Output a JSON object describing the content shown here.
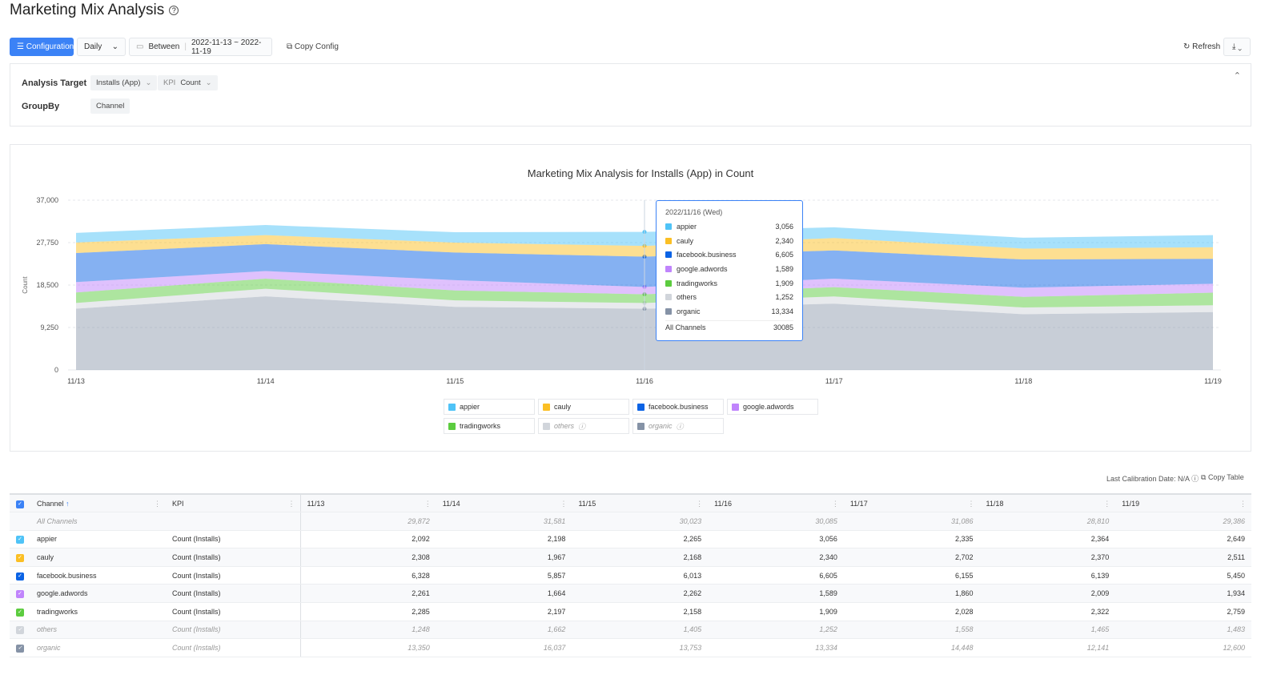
{
  "page": {
    "title": "Marketing Mix Analysis"
  },
  "toolbar": {
    "configuration": "Configuration",
    "period": "Daily",
    "between_label": "Between",
    "date_range": "2022-11-13 ~ 2022-11-19",
    "copy_config": "Copy Config",
    "refresh": "Refresh"
  },
  "config": {
    "analysis_target_label": "Analysis Target",
    "target": "Installs (App)",
    "kpi_label": "KPI",
    "kpi": "Count",
    "groupby_label": "GroupBy",
    "groupby": "Channel"
  },
  "chart_data": {
    "type": "area",
    "stacked": true,
    "title": "Marketing Mix Analysis for Installs (App) in Count",
    "ylabel": "Count",
    "ylim": [
      0,
      37000
    ],
    "yticks": [
      "0",
      "9,250",
      "18,500",
      "27,750",
      "37,000"
    ],
    "categories": [
      "11/13",
      "11/14",
      "11/15",
      "11/16",
      "11/17",
      "11/18",
      "11/19"
    ],
    "grid": true,
    "legend_position": "bottom",
    "series": [
      {
        "name": "appier",
        "color": "#4fc3f7",
        "values": [
          2092,
          2198,
          2265,
          3056,
          2335,
          2364,
          2649
        ]
      },
      {
        "name": "cauly",
        "color": "#fbbf24",
        "values": [
          2308,
          1967,
          2168,
          2340,
          2702,
          2370,
          2511
        ]
      },
      {
        "name": "facebook.business",
        "color": "#0b63e5",
        "values": [
          6328,
          5857,
          6013,
          6605,
          6155,
          6139,
          5450
        ]
      },
      {
        "name": "google.adwords",
        "color": "#c084fc",
        "values": [
          2261,
          1664,
          2262,
          1589,
          1860,
          2009,
          1934
        ]
      },
      {
        "name": "tradingworks",
        "color": "#5ccc3f",
        "values": [
          2285,
          2197,
          2158,
          1909,
          2028,
          2322,
          2759
        ]
      },
      {
        "name": "others",
        "color": "#d1d5db",
        "values": [
          1248,
          1662,
          1405,
          1252,
          1558,
          1465,
          1483
        ]
      },
      {
        "name": "organic",
        "color": "#8592a6",
        "values": [
          13350,
          16037,
          13753,
          13334,
          14448,
          12141,
          12600
        ]
      }
    ]
  },
  "tooltip": {
    "date": "2022/11/16 (Wed)",
    "rows": [
      {
        "name": "appier",
        "value": "3,056"
      },
      {
        "name": "cauly",
        "value": "2,340"
      },
      {
        "name": "facebook.business",
        "value": "6,605"
      },
      {
        "name": "google.adwords",
        "value": "1,589"
      },
      {
        "name": "tradingworks",
        "value": "1,909"
      },
      {
        "name": "others",
        "value": "1,252"
      },
      {
        "name": "organic",
        "value": "13,334"
      }
    ],
    "total_label": "All Channels",
    "total": "30085"
  },
  "table": {
    "calibration": "Last Calibration Date: N/A",
    "copy_table": "Copy Table",
    "headers": [
      "Channel",
      "KPI",
      "11/13",
      "11/14",
      "11/15",
      "11/16",
      "11/17",
      "11/18",
      "11/19"
    ],
    "total_row": {
      "channel": "All Channels",
      "values": [
        "29,872",
        "31,581",
        "30,023",
        "30,085",
        "31,086",
        "28,810",
        "29,386"
      ]
    },
    "rows": [
      {
        "channel": "appier",
        "kpi": "Count (Installs)",
        "values": [
          "2,092",
          "2,198",
          "2,265",
          "3,056",
          "2,335",
          "2,364",
          "2,649"
        ]
      },
      {
        "channel": "cauly",
        "kpi": "Count (Installs)",
        "values": [
          "2,308",
          "1,967",
          "2,168",
          "2,340",
          "2,702",
          "2,370",
          "2,511"
        ]
      },
      {
        "channel": "facebook.business",
        "kpi": "Count (Installs)",
        "values": [
          "6,328",
          "5,857",
          "6,013",
          "6,605",
          "6,155",
          "6,139",
          "5,450"
        ]
      },
      {
        "channel": "google.adwords",
        "kpi": "Count (Installs)",
        "values": [
          "2,261",
          "1,664",
          "2,262",
          "1,589",
          "1,860",
          "2,009",
          "1,934"
        ]
      },
      {
        "channel": "tradingworks",
        "kpi": "Count (Installs)",
        "values": [
          "2,285",
          "2,197",
          "2,158",
          "1,909",
          "2,028",
          "2,322",
          "2,759"
        ]
      },
      {
        "channel": "others",
        "kpi": "Count (Installs)",
        "values": [
          "1,248",
          "1,662",
          "1,405",
          "1,252",
          "1,558",
          "1,465",
          "1,483"
        ]
      },
      {
        "channel": "organic",
        "kpi": "Count (Installs)",
        "values": [
          "13,350",
          "16,037",
          "13,753",
          "13,334",
          "14,448",
          "12,141",
          "12,600"
        ]
      }
    ]
  }
}
